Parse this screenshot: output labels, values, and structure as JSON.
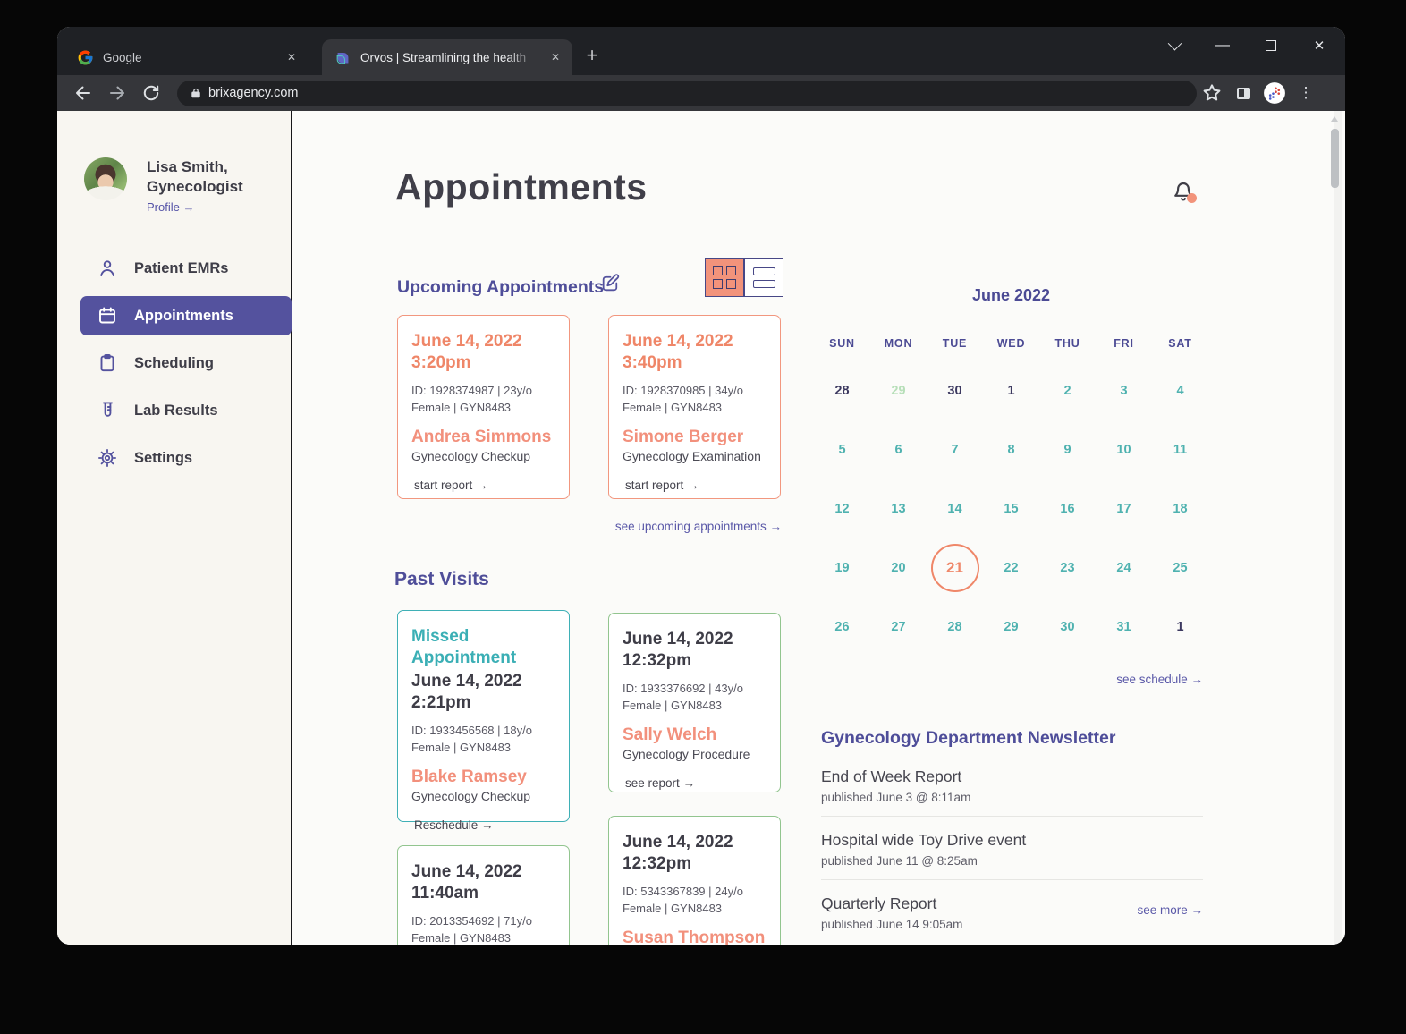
{
  "browser": {
    "tabs": [
      {
        "title": "Google"
      },
      {
        "title": "Orvos | Streamlining the health"
      }
    ],
    "url": "brixagency.com"
  },
  "sidebar": {
    "profile": {
      "name_line1": "Lisa Smith,",
      "name_line2": "Gynecologist",
      "link": "Profile →"
    },
    "items": [
      {
        "label": "Patient EMRs",
        "icon": "person-icon",
        "active": false
      },
      {
        "label": "Appointments",
        "icon": "calendar-icon",
        "active": true
      },
      {
        "label": "Scheduling",
        "icon": "clipboard-icon",
        "active": false
      },
      {
        "label": "Lab Results",
        "icon": "test-tube-icon",
        "active": false
      },
      {
        "label": "Settings",
        "icon": "gear-icon",
        "active": false
      }
    ]
  },
  "main": {
    "title": "Appointments",
    "upcoming": {
      "heading": "Upcoming Appointments",
      "see_all": "see upcoming appointments →",
      "cards": [
        {
          "date": "June 14, 2022",
          "time": "3:20pm",
          "id_line": "ID: 1928374987 | 23y/o",
          "id_line2": "Female | GYN8483",
          "name": "Andrea Simmons",
          "procedure": "Gynecology Checkup",
          "action": "start report →"
        },
        {
          "date": "June 14, 2022",
          "time": "3:40pm",
          "id_line": "ID: 1928370985 | 34y/o",
          "id_line2": "Female | GYN8483",
          "name": "Simone Berger",
          "procedure": "Gynecology Examination",
          "action": "start report →"
        }
      ]
    },
    "past": {
      "heading": "Past Visits",
      "cards": [
        {
          "tag": "Missed Appointment",
          "date": "June 14, 2022",
          "time": "2:21pm",
          "id_line": "ID: 1933456568 | 18y/o",
          "id_line2": "Female | GYN8483",
          "name": "Blake Ramsey",
          "procedure": "Gynecology Checkup",
          "action": "Reschedule →",
          "border": "teal"
        },
        {
          "date": "June 14, 2022",
          "time": "12:32pm",
          "id_line": "ID: 1933376692 | 43y/o",
          "id_line2": "Female | GYN8483",
          "name": "Sally Welch",
          "procedure": "Gynecology Procedure",
          "action": "see report →",
          "border": "green"
        },
        {
          "date": "June 14, 2022",
          "time": "11:40am",
          "id_line": "ID: 2013354692 | 71y/o",
          "id_line2": "Female | GYN8483",
          "border": "green"
        },
        {
          "date": "June 14, 2022",
          "time": "12:32pm",
          "id_line": "ID: 5343367839 | 24y/o",
          "id_line2": "Female | GYN8483",
          "name": "Susan Thompson",
          "border": "green"
        }
      ]
    },
    "calendar": {
      "month": "June 2022",
      "weekdays": [
        "SUN",
        "MON",
        "TUE",
        "WED",
        "THU",
        "FRI",
        "SAT"
      ],
      "weeks": [
        [
          {
            "d": "28",
            "s": "dark"
          },
          {
            "d": "29",
            "s": "pale"
          },
          {
            "d": "30",
            "s": "dark"
          },
          {
            "d": "1",
            "s": "dark"
          },
          {
            "d": "2",
            "s": "teal"
          },
          {
            "d": "3",
            "s": "teal"
          },
          {
            "d": "4",
            "s": "teal"
          }
        ],
        [
          {
            "d": "5",
            "s": "teal"
          },
          {
            "d": "6",
            "s": "teal"
          },
          {
            "d": "7",
            "s": "teal"
          },
          {
            "d": "8",
            "s": "teal"
          },
          {
            "d": "9",
            "s": "teal"
          },
          {
            "d": "10",
            "s": "teal"
          },
          {
            "d": "11",
            "s": "teal"
          }
        ],
        [
          {
            "d": "12",
            "s": "teal"
          },
          {
            "d": "13",
            "s": "teal"
          },
          {
            "d": "14",
            "s": "teal"
          },
          {
            "d": "15",
            "s": "teal"
          },
          {
            "d": "16",
            "s": "teal"
          },
          {
            "d": "17",
            "s": "teal"
          },
          {
            "d": "18",
            "s": "teal"
          }
        ],
        [
          {
            "d": "19",
            "s": "teal"
          },
          {
            "d": "20",
            "s": "teal"
          },
          {
            "d": "21",
            "s": "selected"
          },
          {
            "d": "22",
            "s": "teal"
          },
          {
            "d": "23",
            "s": "teal"
          },
          {
            "d": "24",
            "s": "teal"
          },
          {
            "d": "25",
            "s": "teal"
          }
        ],
        [
          {
            "d": "26",
            "s": "teal"
          },
          {
            "d": "27",
            "s": "teal"
          },
          {
            "d": "28",
            "s": "teal"
          },
          {
            "d": "29",
            "s": "teal"
          },
          {
            "d": "30",
            "s": "teal"
          },
          {
            "d": "31",
            "s": "teal"
          },
          {
            "d": "1",
            "s": "dark"
          }
        ]
      ],
      "see_schedule": "see schedule →"
    },
    "newsletter": {
      "heading": "Gynecology Department Newsletter",
      "items": [
        {
          "title": "End of Week Report",
          "published": "published June 3 @ 8:11am"
        },
        {
          "title": "Hospital wide Toy Drive event",
          "published": "published June 11 @ 8:25am"
        },
        {
          "title": "Quarterly Report",
          "published": "published June 14 9:05am"
        }
      ],
      "see_more": "see more →"
    }
  },
  "colors": {
    "accent_salmon": "#F2937B",
    "accent_teal": "#3FB0B6",
    "accent_purple": "#54529E",
    "accent_green": "#92C58F"
  }
}
